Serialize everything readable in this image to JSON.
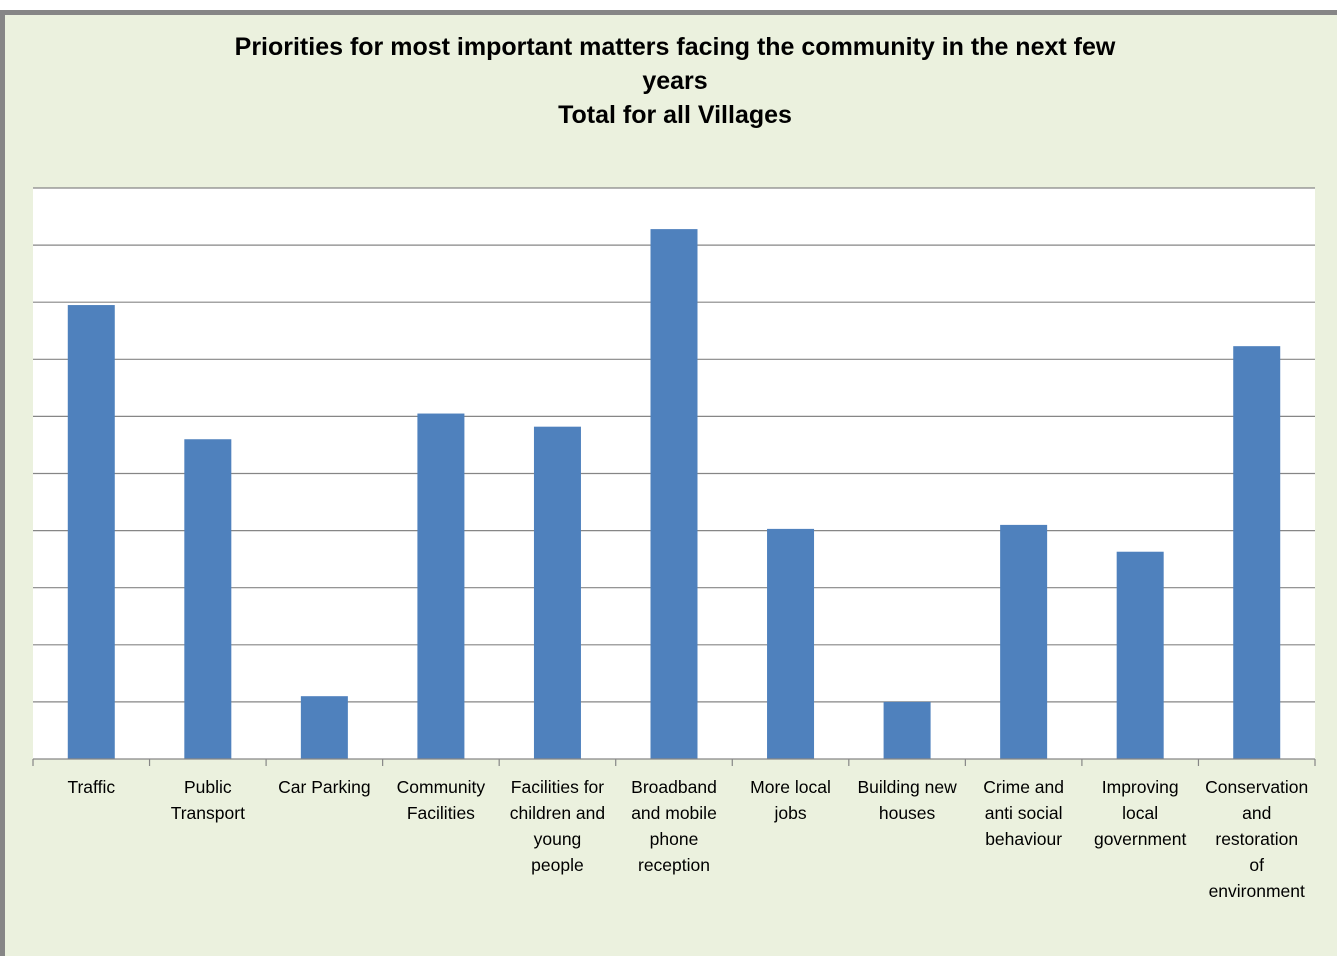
{
  "chart_data": {
    "type": "bar",
    "title_lines": [
      "Priorities for most important matters facing the community in the next few",
      "years",
      "Total for all Villages"
    ],
    "categories": [
      [
        "Traffic"
      ],
      [
        "Public",
        "Transport"
      ],
      [
        "Car Parking"
      ],
      [
        "Community",
        "Facilities"
      ],
      [
        "Facilities for",
        "children and",
        "young",
        "people"
      ],
      [
        "Broadband",
        "and mobile",
        "phone",
        "reception"
      ],
      [
        "More local",
        "jobs"
      ],
      [
        "Building new",
        "houses"
      ],
      [
        "Crime and",
        "anti social",
        "behaviour"
      ],
      [
        "Improving",
        "local",
        "government"
      ],
      [
        "Conservation",
        "and",
        "restoration",
        "of",
        "environment"
      ]
    ],
    "values": [
      79.5,
      56,
      11,
      60.5,
      58.2,
      92.8,
      40.3,
      10,
      41,
      36.3,
      72.3
    ],
    "ylim": [
      0,
      100
    ],
    "gridline_count": 10,
    "y_tick_labels_visible": false,
    "grid": true,
    "legend": "none",
    "colors": {
      "bar": "#4f81bd",
      "plot_background": "#ffffff",
      "frame_background": "#ebf1de",
      "gridline": "#868686",
      "border": "#868686"
    }
  }
}
